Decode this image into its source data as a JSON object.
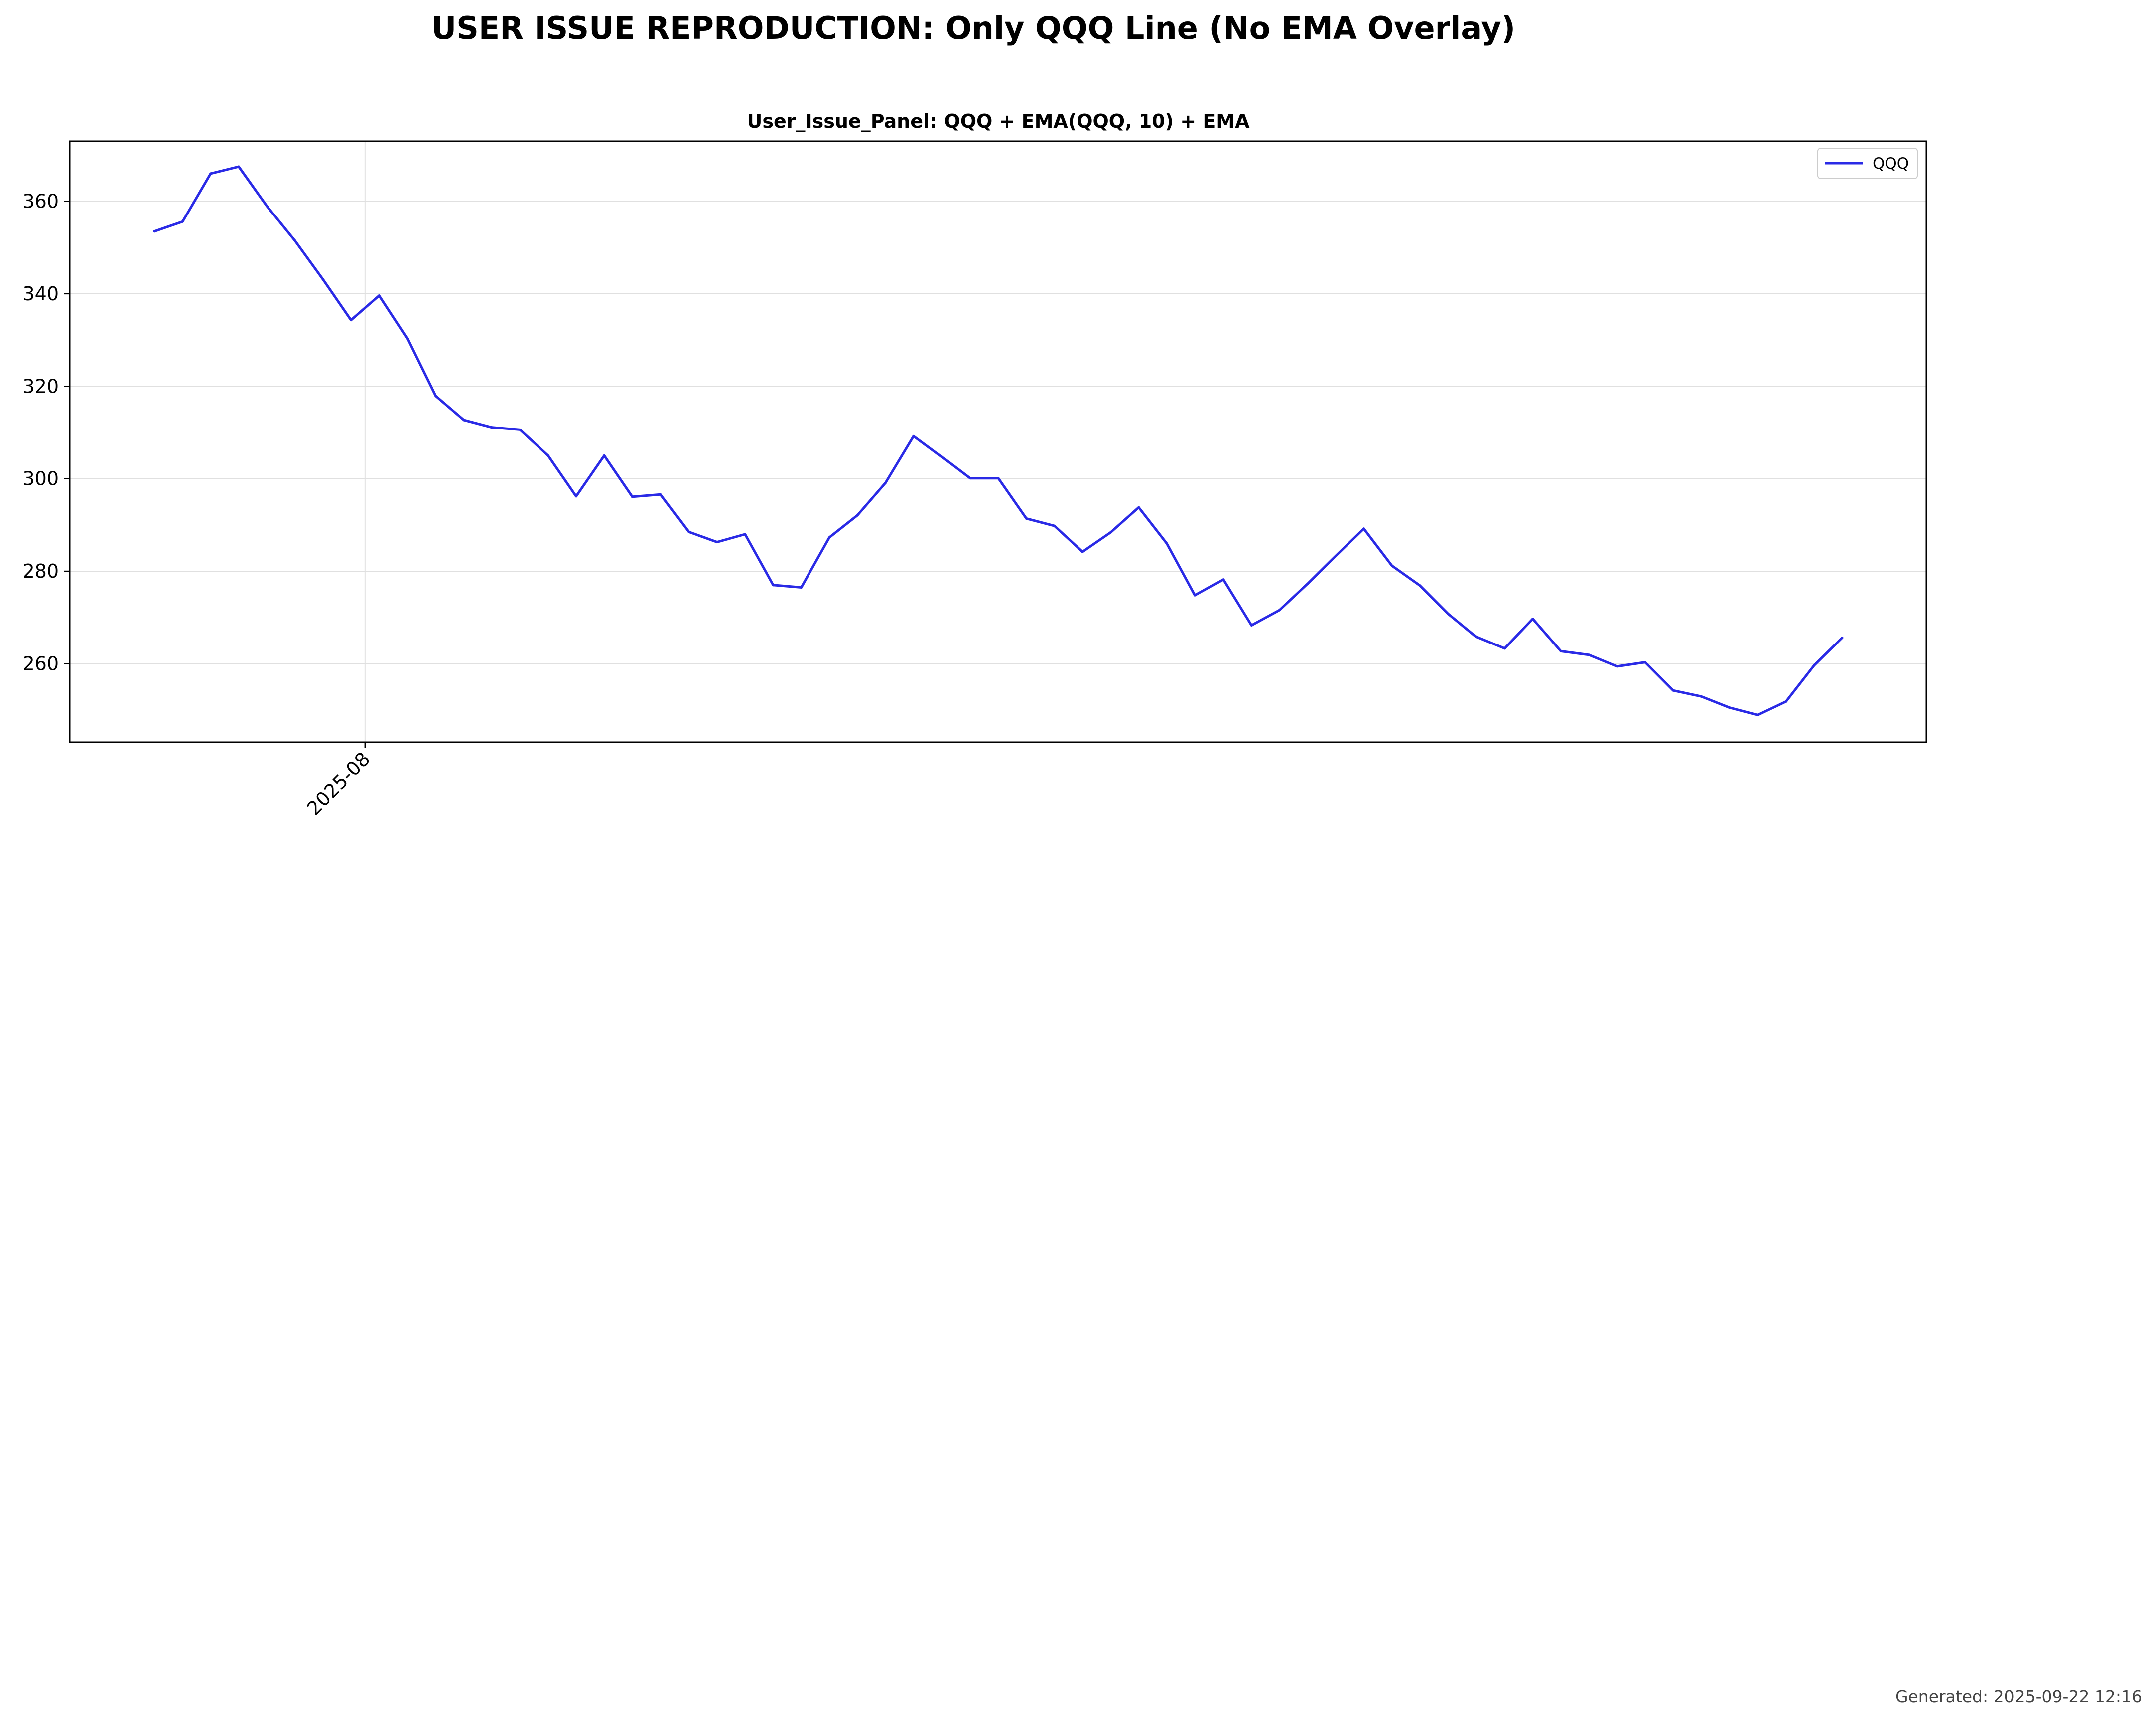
{
  "figure": {
    "suptitle": "USER ISSUE REPRODUCTION: Only QQQ Line (No EMA Overlay)",
    "footer": "Generated: 2025-09-22 12:16"
  },
  "chart_data": {
    "type": "line",
    "title": "User_Issue_Panel: QQQ + EMA(QQQ, 10) + EMA",
    "xlabel": "",
    "ylabel": "",
    "ylim": [
      243,
      373
    ],
    "yticks": [
      260,
      280,
      300,
      320,
      340,
      360
    ],
    "x_ticks": [
      {
        "label": "2025-08",
        "index": 7.5
      }
    ],
    "x_range": [
      -3,
      63
    ],
    "grid": true,
    "legend": {
      "placement": "upper-right",
      "entries": [
        "QQQ"
      ]
    },
    "series": [
      {
        "name": "QQQ",
        "color": "#2a2ae6",
        "values": [
          353.5,
          355.6,
          366,
          367.5,
          359,
          351.5,
          343.1,
          334.3,
          339.6,
          330.3,
          317.9,
          312.7,
          311.1,
          310.6,
          305,
          296.2,
          305,
          296.1,
          296.6,
          288.5,
          286.3,
          288,
          277,
          276.5,
          287.3,
          292.1,
          299.1,
          309.2,
          304.7,
          300.1,
          300.1,
          291.4,
          289.8,
          284.2,
          288.4,
          293.8,
          286,
          274.8,
          278.2,
          268.3,
          271.6,
          277.3,
          283.3,
          289.2,
          281.2,
          276.9,
          270.8,
          265.8,
          263.3,
          269.7,
          262.7,
          261.9,
          259.4,
          260.3,
          254.2,
          252.9,
          250.5,
          248.9,
          251.8,
          259.6,
          265.6
        ]
      }
    ]
  }
}
